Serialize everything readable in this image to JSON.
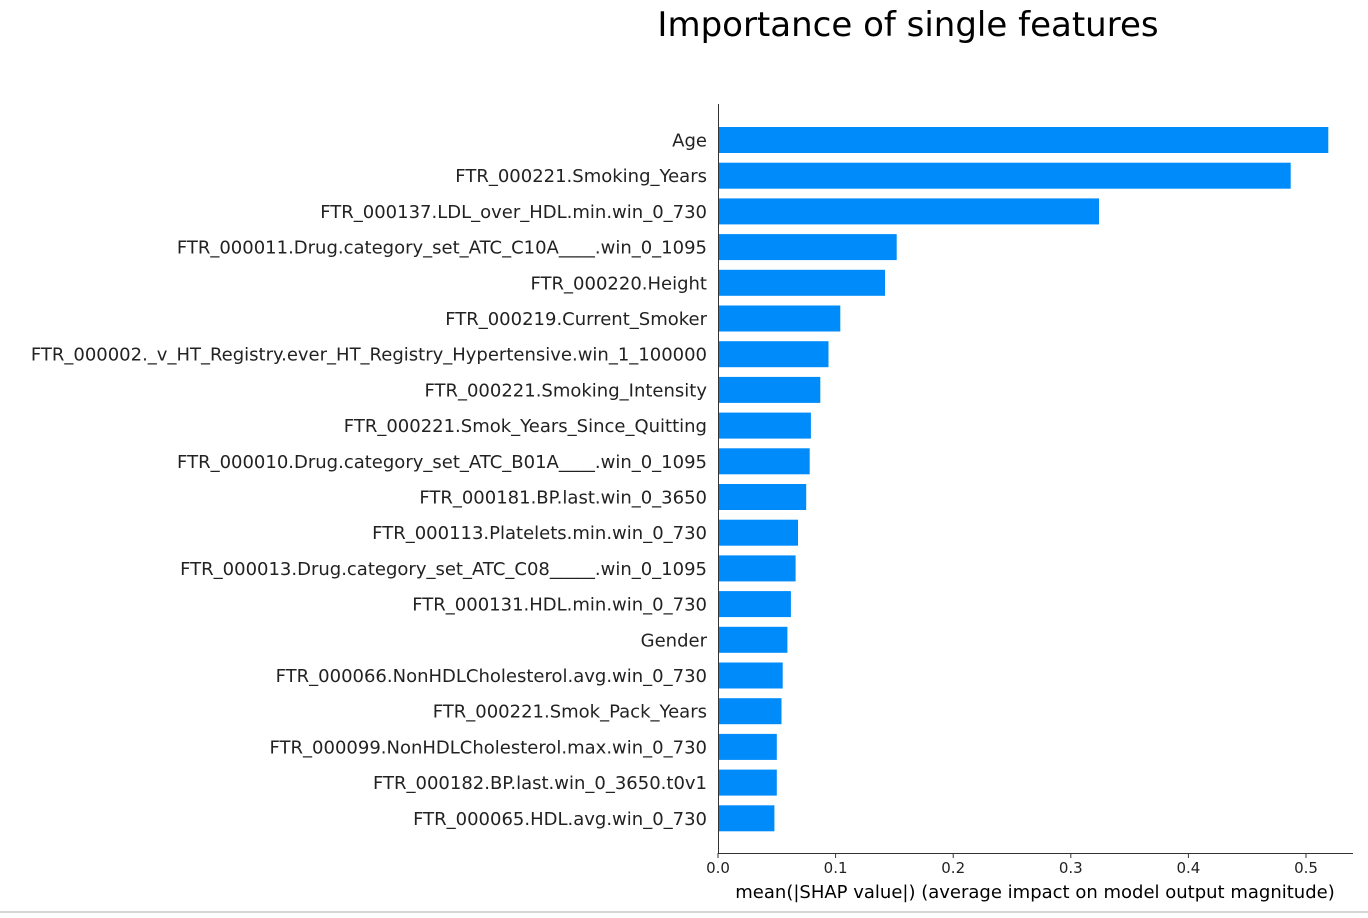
{
  "chart_data": {
    "type": "bar",
    "orientation": "horizontal",
    "title": "Importance of single features",
    "xlabel": "mean(|SHAP value|) (average impact on model output magnitude)",
    "ylabel": "",
    "xlim": [
      0,
      0.54
    ],
    "xticks": [
      0.0,
      0.1,
      0.2,
      0.3,
      0.4,
      0.5
    ],
    "xtick_labels": [
      "0.0",
      "0.1",
      "0.2",
      "0.3",
      "0.4",
      "0.5"
    ],
    "grid": false,
    "bar_color": "#008bfb",
    "categories": [
      "Age",
      "FTR_000221.Smoking_Years",
      "FTR_000137.LDL_over_HDL.min.win_0_730",
      "FTR_000011.Drug.category_set_ATC_C10A____.win_0_1095",
      "FTR_000220.Height",
      "FTR_000219.Current_Smoker",
      "FTR_000002._v_HT_Registry.ever_HT_Registry_Hypertensive.win_1_100000",
      "FTR_000221.Smoking_Intensity",
      "FTR_000221.Smok_Years_Since_Quitting",
      "FTR_000010.Drug.category_set_ATC_B01A____.win_0_1095",
      "FTR_000181.BP.last.win_0_3650",
      "FTR_000113.Platelets.min.win_0_730",
      "FTR_000013.Drug.category_set_ATC_C08_____.win_0_1095",
      "FTR_000131.HDL.min.win_0_730",
      "Gender",
      "FTR_000066.NonHDLCholesterol.avg.win_0_730",
      "FTR_000221.Smok_Pack_Years",
      "FTR_000099.NonHDLCholesterol.max.win_0_730",
      "FTR_000182.BP.last.win_0_3650.t0v1",
      "FTR_000065.HDL.avg.win_0_730"
    ],
    "values": [
      0.519,
      0.487,
      0.324,
      0.152,
      0.142,
      0.104,
      0.094,
      0.087,
      0.079,
      0.078,
      0.075,
      0.068,
      0.066,
      0.062,
      0.059,
      0.055,
      0.054,
      0.05,
      0.05,
      0.048
    ]
  }
}
